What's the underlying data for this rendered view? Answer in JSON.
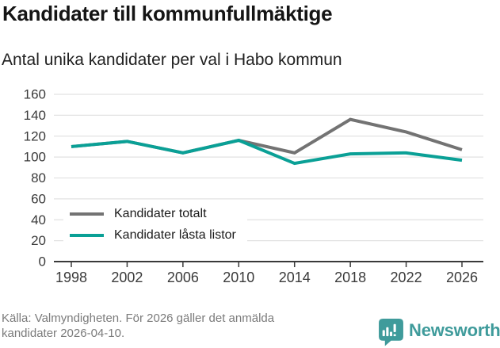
{
  "header": {
    "title": "Kandidater till kommunfullmäktige",
    "subtitle": "Antal unika kandidater per val i Habo kommun"
  },
  "chart_data": {
    "type": "line",
    "x": [
      1998,
      2002,
      2006,
      2010,
      2014,
      2018,
      2022,
      2026
    ],
    "series": [
      {
        "name": "Kandidater totalt",
        "color": "#737373",
        "values": [
          110,
          115,
          104,
          116,
          104,
          136,
          124,
          107
        ]
      },
      {
        "name": "Kandidater låsta listor",
        "color": "#0aa096",
        "values": [
          110,
          115,
          104,
          116,
          94,
          103,
          104,
          97
        ]
      }
    ],
    "ylim": [
      0,
      160
    ],
    "ytick_step": 20,
    "yticks": [
      0,
      20,
      40,
      60,
      80,
      100,
      120,
      140,
      160
    ],
    "grid": true,
    "gridline_color": "#e2e2e2",
    "axis_color": "#3a3a3a",
    "legend_position": "inside-bottom-left",
    "title": "Kandidater till kommunfullmäktige",
    "subtitle": "Antal unika kandidater per val i Habo kommun",
    "xlabel": "",
    "ylabel": ""
  },
  "footer": {
    "source": "Källa: Valmyndigheten. För 2026 gäller det anmälda kandidater 2026-04-10.",
    "brand": "Newsworthy",
    "brand_color": "#3f9b9b"
  }
}
